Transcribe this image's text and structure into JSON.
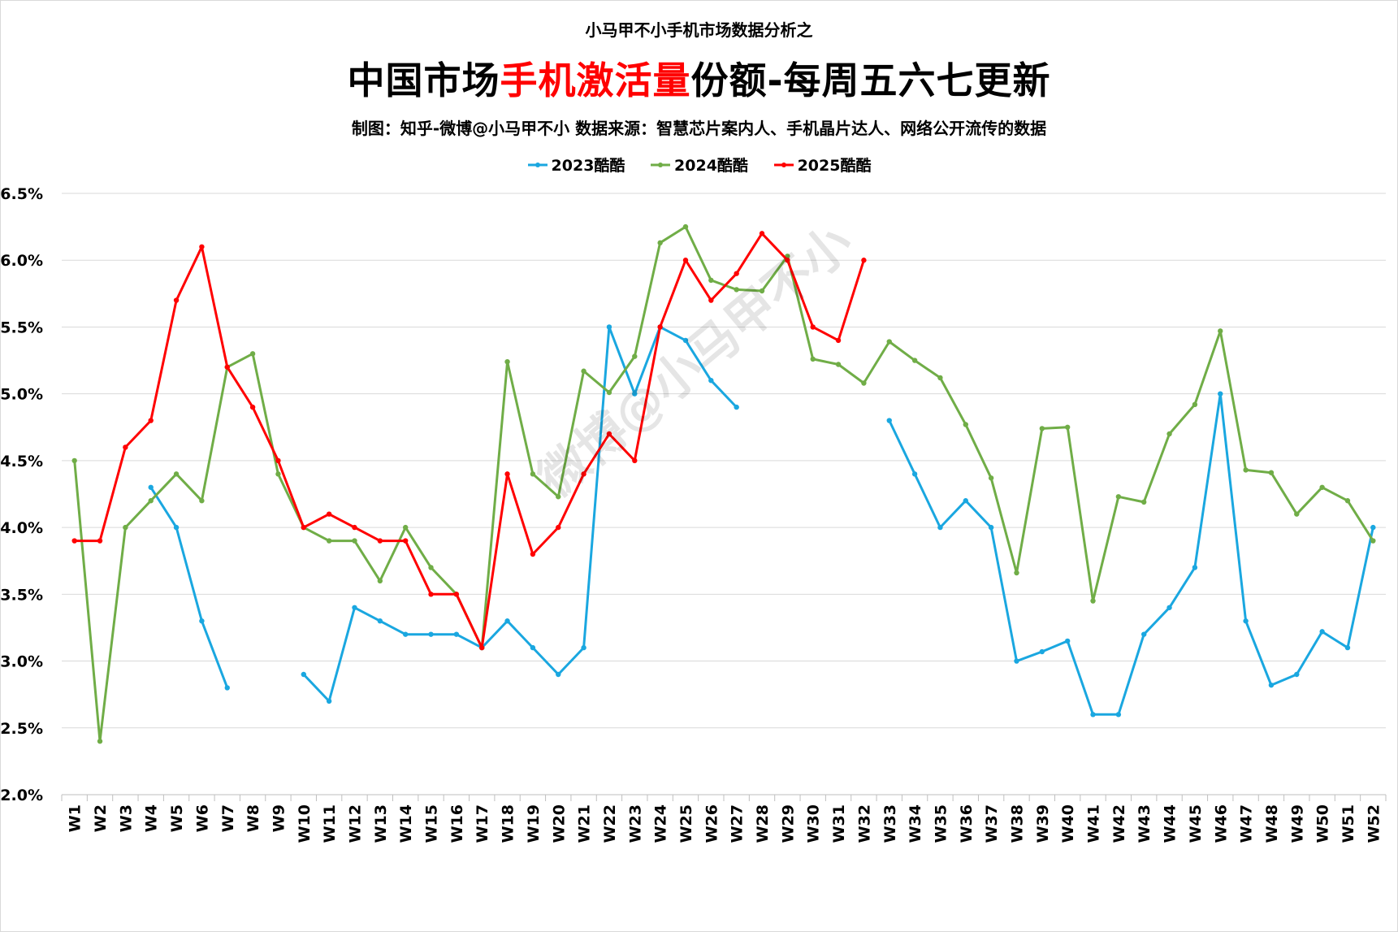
{
  "header": {
    "top": "小马甲不小手机市场数据分析之",
    "title_prefix": "中国市场",
    "title_highlight": "手机激活量",
    "title_suffix": "份额-每周五六七更新",
    "credit": "制图：知乎-微博@小马甲不小  数据来源：智慧芯片案内人、手机晶片达人、网络公开流传的数据"
  },
  "watermark": "微博@小马甲不小",
  "chart_data": {
    "type": "line",
    "categories": [
      "W1",
      "W2",
      "W3",
      "W4",
      "W5",
      "W6",
      "W7",
      "W8",
      "W9",
      "W10",
      "W11",
      "W12",
      "W13",
      "W14",
      "W15",
      "W16",
      "W17",
      "W18",
      "W19",
      "W20",
      "W21",
      "W22",
      "W23",
      "W24",
      "W25",
      "W26",
      "W27",
      "W28",
      "W29",
      "W30",
      "W31",
      "W32",
      "W33",
      "W34",
      "W35",
      "W36",
      "W37",
      "W38",
      "W39",
      "W40",
      "W41",
      "W42",
      "W43",
      "W44",
      "W45",
      "W46",
      "W47",
      "W48",
      "W49",
      "W50",
      "W51",
      "W52"
    ],
    "ylim": [
      2.0,
      6.5
    ],
    "yticks": [
      "2.0%",
      "2.5%",
      "3.0%",
      "3.5%",
      "4.0%",
      "4.5%",
      "5.0%",
      "5.5%",
      "6.0%",
      "6.5%"
    ],
    "grid": true,
    "legend_position": "top",
    "series": [
      {
        "name": "2023酷酷",
        "color": "#1aa7e0",
        "values": [
          null,
          null,
          null,
          4.3,
          4.0,
          3.3,
          2.8,
          null,
          null,
          2.9,
          2.7,
          3.4,
          3.3,
          3.2,
          3.2,
          3.2,
          3.1,
          3.3,
          3.1,
          2.9,
          3.1,
          5.5,
          5.0,
          5.5,
          5.4,
          5.1,
          4.9,
          null,
          null,
          null,
          null,
          null,
          4.8,
          4.4,
          4.0,
          4.2,
          4.0,
          3.0,
          3.07,
          3.15,
          2.6,
          2.6,
          3.2,
          3.4,
          3.7,
          5.0,
          3.3,
          2.82,
          2.9,
          3.22,
          3.1,
          4.0
        ]
      },
      {
        "name": "2024酷酷",
        "color": "#70ad47",
        "values": [
          4.5,
          2.4,
          4.0,
          4.2,
          4.4,
          4.2,
          5.2,
          5.3,
          4.4,
          4.0,
          3.9,
          3.9,
          3.6,
          4.0,
          3.7,
          3.5,
          3.1,
          5.24,
          4.4,
          4.23,
          5.17,
          5.01,
          5.28,
          6.13,
          6.25,
          5.85,
          5.78,
          5.77,
          6.03,
          5.26,
          5.22,
          5.08,
          5.39,
          5.25,
          5.12,
          4.77,
          4.37,
          3.66,
          4.74,
          4.75,
          3.45,
          4.23,
          4.19,
          4.7,
          4.92,
          5.47,
          4.43,
          4.41,
          4.1,
          4.3,
          4.2,
          3.9
        ]
      },
      {
        "name": "2025酷酷",
        "color": "#ff0000",
        "values": [
          3.9,
          3.9,
          4.6,
          4.8,
          5.7,
          6.1,
          5.2,
          4.9,
          4.5,
          4.0,
          4.1,
          4.0,
          3.9,
          3.9,
          3.5,
          3.5,
          3.1,
          4.4,
          3.8,
          4.0,
          4.4,
          4.7,
          4.5,
          5.5,
          6.0,
          5.7,
          5.9,
          6.2,
          6.0,
          5.5,
          5.4,
          6.0,
          null,
          null,
          null,
          null,
          null,
          null,
          null,
          null,
          null,
          null,
          null,
          null,
          null,
          null,
          null,
          null,
          null,
          null,
          null,
          null
        ]
      }
    ]
  }
}
